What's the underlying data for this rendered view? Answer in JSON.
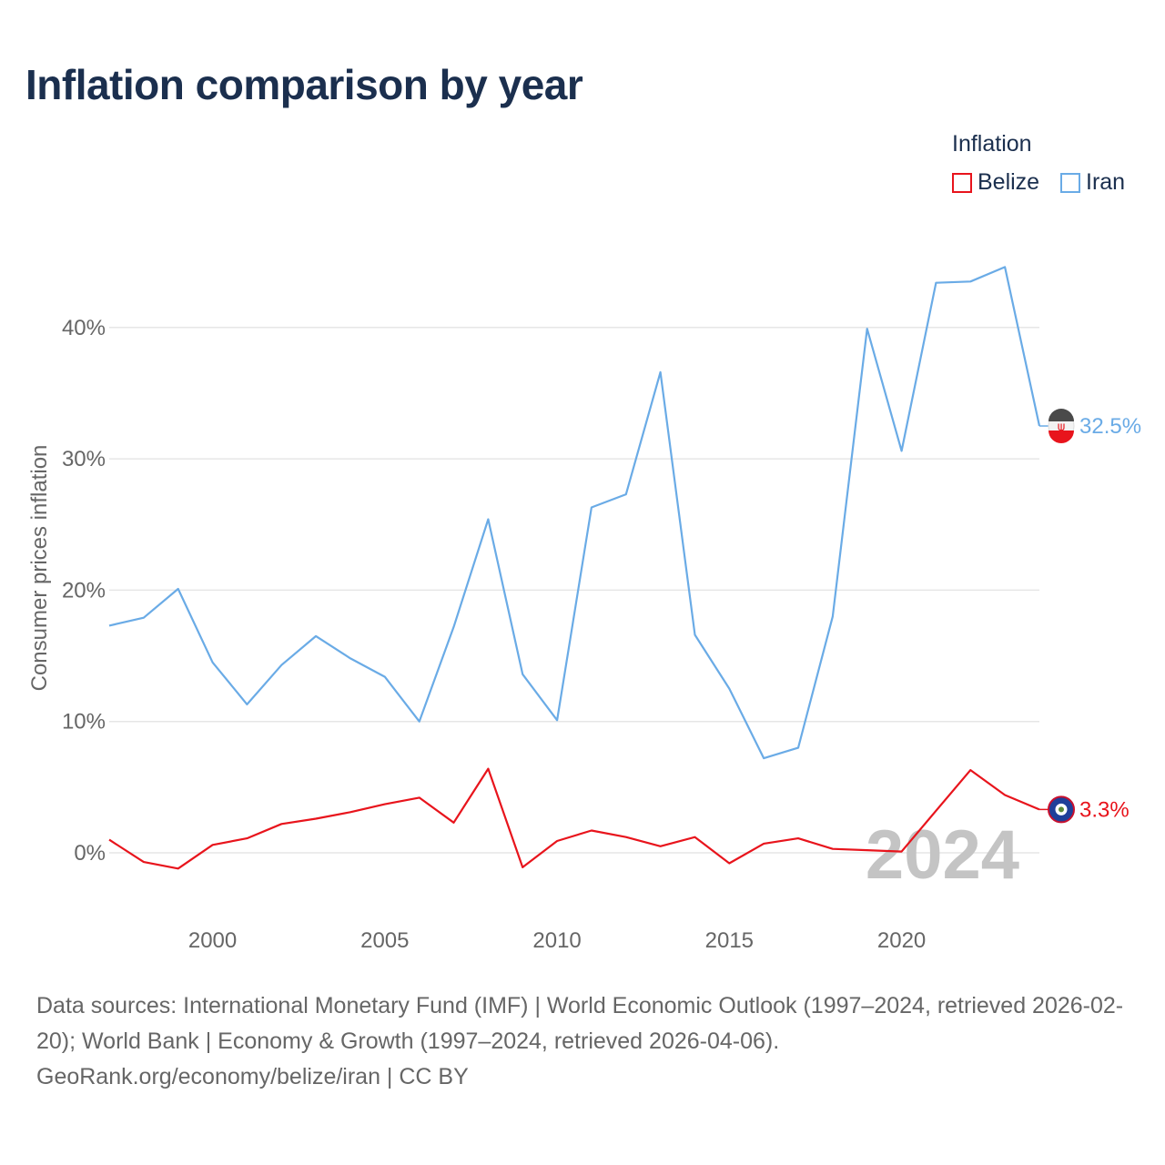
{
  "title": "Inflation comparison by year",
  "legend": {
    "title": "Inflation",
    "items": [
      {
        "label": "Belize",
        "color": "#e8141c"
      },
      {
        "label": "Iran",
        "color": "#6aabe6"
      }
    ]
  },
  "watermark_year": "2024",
  "chart_data": {
    "type": "line",
    "title": "Inflation comparison by year",
    "xlabel": "",
    "ylabel": "Consumer prices inflation",
    "x": [
      1997,
      1998,
      1999,
      2000,
      2001,
      2002,
      2003,
      2004,
      2005,
      2006,
      2007,
      2008,
      2009,
      2010,
      2011,
      2012,
      2013,
      2014,
      2015,
      2016,
      2017,
      2018,
      2019,
      2020,
      2021,
      2022,
      2023,
      2024
    ],
    "xlim": [
      1997,
      2024
    ],
    "ylim": [
      -5,
      47
    ],
    "xticks": [
      2000,
      2005,
      2010,
      2015,
      2020
    ],
    "xtick_labels": [
      "2000",
      "2005",
      "2010",
      "2015",
      "2020"
    ],
    "yticks": [
      0,
      10,
      20,
      30,
      40
    ],
    "ytick_labels": [
      "0%",
      "10%",
      "20%",
      "30%",
      "40%"
    ],
    "grid": true,
    "legend_position": "top-right",
    "series": [
      {
        "name": "Belize",
        "color": "#e8141c",
        "values": [
          1.0,
          -0.7,
          -1.2,
          0.6,
          1.1,
          2.2,
          2.6,
          3.1,
          3.7,
          4.2,
          2.3,
          6.4,
          -1.1,
          0.9,
          1.7,
          1.2,
          0.5,
          1.2,
          -0.8,
          0.7,
          1.1,
          0.3,
          0.2,
          0.1,
          3.2,
          6.3,
          4.4,
          3.3
        ],
        "end_label": "3.3%"
      },
      {
        "name": "Iran",
        "color": "#6aabe6",
        "values": [
          17.3,
          17.9,
          20.1,
          14.5,
          11.3,
          14.3,
          16.5,
          14.8,
          13.4,
          10.0,
          17.2,
          25.4,
          13.6,
          10.1,
          26.3,
          27.3,
          36.6,
          16.6,
          12.5,
          7.2,
          8.0,
          18.0,
          39.9,
          30.6,
          43.4,
          43.5,
          44.6,
          32.5
        ],
        "end_label": "32.5%"
      }
    ]
  },
  "footer": {
    "line1": "Data sources: International Monetary Fund (IMF) | World Economic Outlook (1997–2024, retrieved 2026-02-20); World Bank | Economy & Growth (1997–2024, retrieved 2026-04-06).",
    "line2": "GeoRank.org/economy/belize/iran | CC BY"
  }
}
